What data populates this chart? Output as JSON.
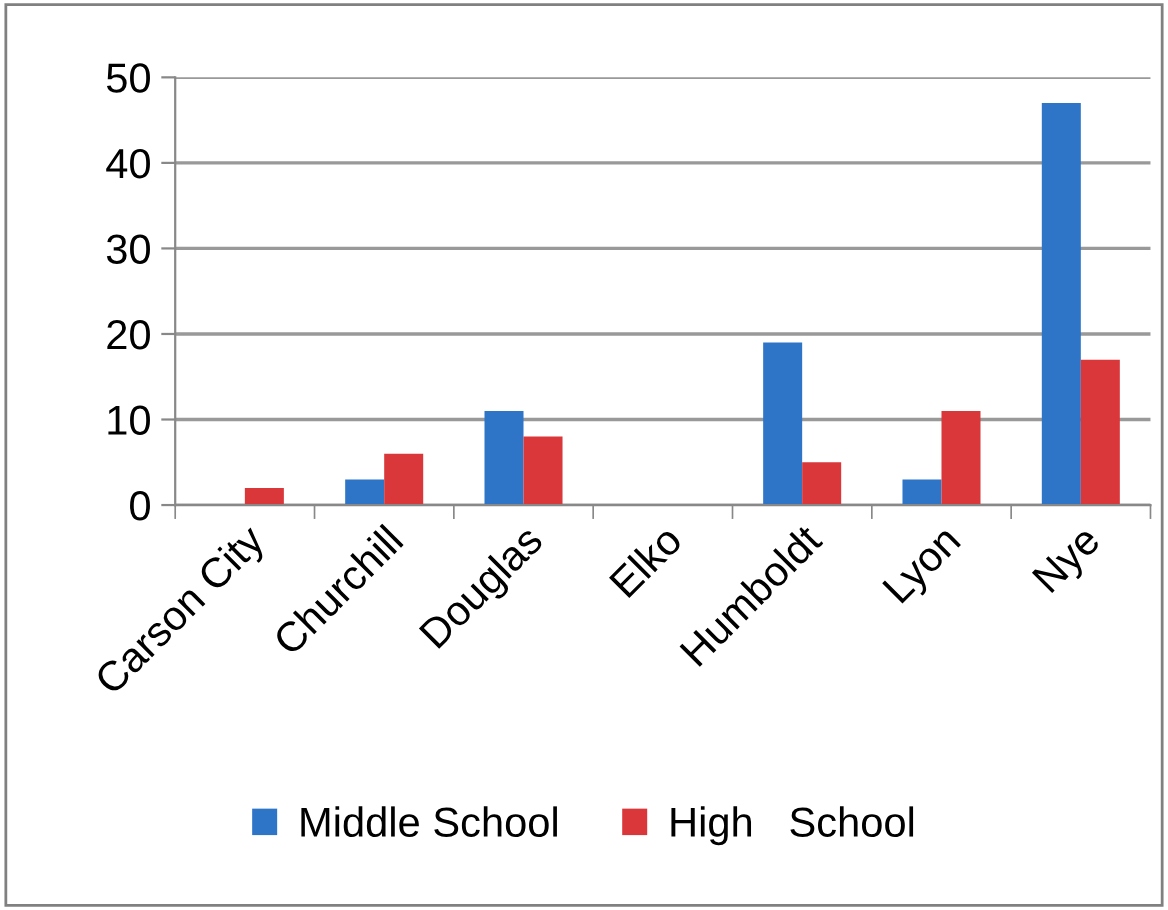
{
  "chart_data": {
    "type": "bar",
    "categories": [
      "Carson City",
      "Churchill",
      "Douglas",
      "Elko",
      "Humboldt",
      "Lyon",
      "Nye"
    ],
    "series": [
      {
        "name": "Middle School",
        "color": "#2e75c8",
        "values": [
          0,
          3,
          11,
          0,
          19,
          3,
          47
        ]
      },
      {
        "name": "High   School",
        "color": "#d9373a",
        "values": [
          2,
          6,
          8,
          0,
          5,
          11,
          17
        ]
      }
    ],
    "ylim": [
      0,
      50
    ],
    "yticks": [
      0,
      10,
      20,
      30,
      40,
      50
    ],
    "grid": "y",
    "legend": "bottom"
  }
}
